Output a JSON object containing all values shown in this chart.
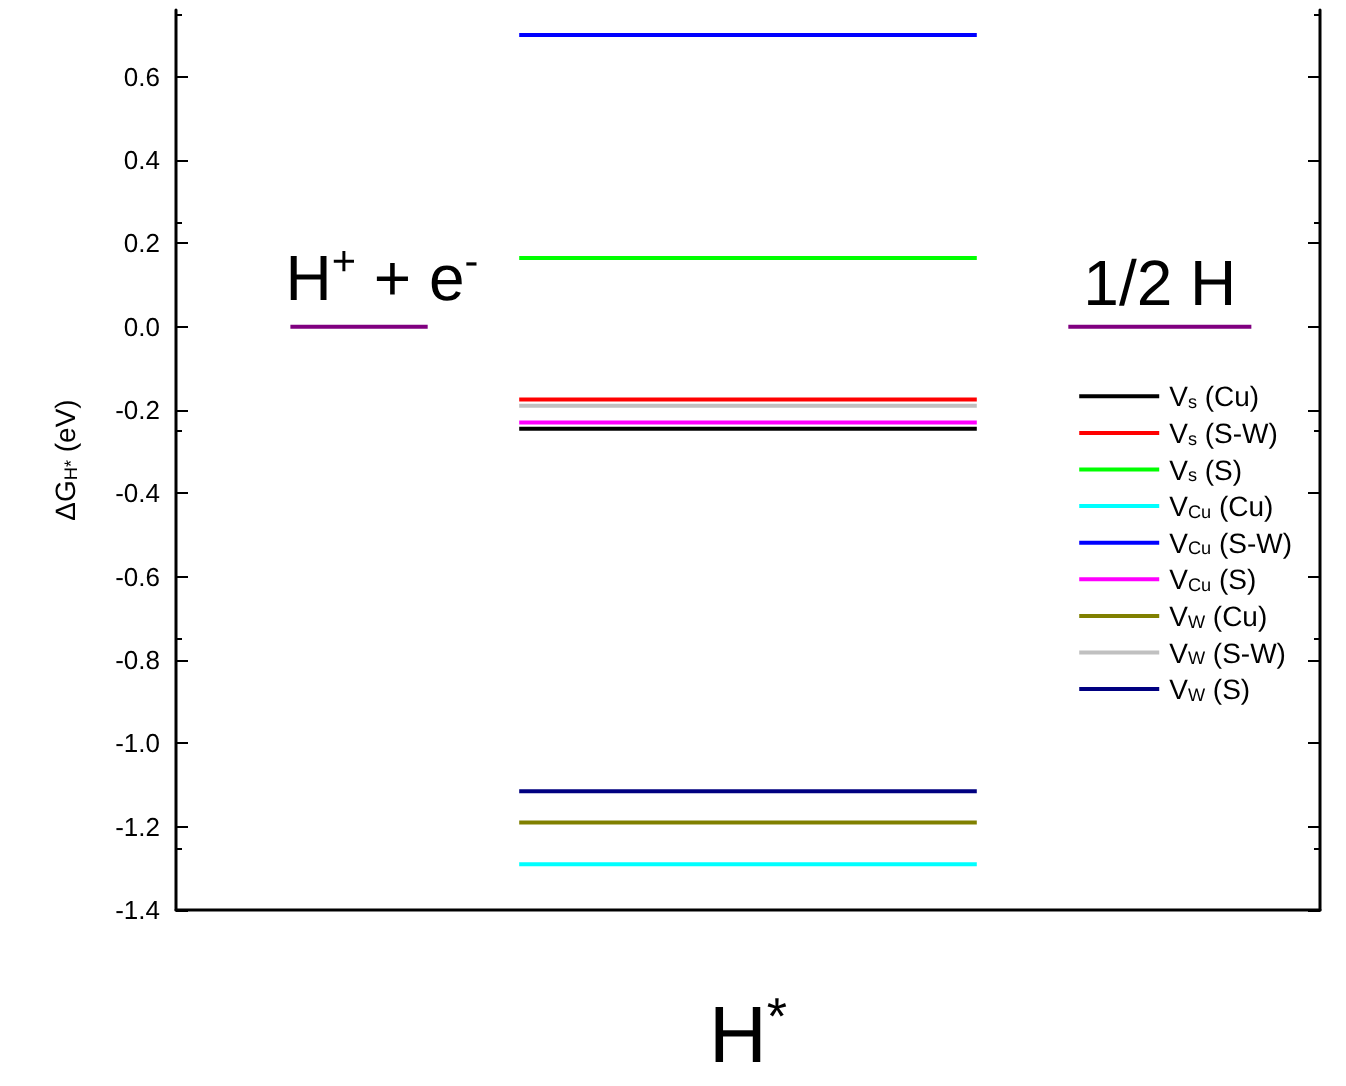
{
  "chart_data": {
    "type": "line",
    "xlabel": "H$^{*}$",
    "ylabel": "ΔG$_{H*}$ (eV)",
    "tick_labels": "y",
    "categories": [
      null,
      null,
      null,
      null,
      null,
      null,
      null,
      null,
      null,
      null,
      null,
      null,
      null,
      null,
      null,
      null,
      null,
      null,
      null,
      null,
      null,
      null,
      null,
      null,
      null
    ],
    "ylim": [
      -1.4,
      0.76
    ],
    "yticks": [
      -1.4,
      -1.2,
      {
        "value": -1.0,
        "label": "-1.0"
      },
      -0.8,
      -0.6,
      -0.4,
      -0.2,
      {
        "value": 0,
        "label": "0.0"
      },
      0.2,
      0.4,
      0.6
    ],
    "grid": false,
    "legend": "right",
    "marker": "none",
    "line_style": "solid",
    "annotations": [
      "H$^{+}$ + e$^{-}$",
      "1/2 H"
    ],
    "series": [
      {
        "color": "#800080",
        "values": [
          null,
          null,
          0,
          0,
          0,
          0,
          null,
          null,
          null,
          null,
          null,
          null,
          null,
          null,
          null,
          null,
          null,
          null,
          null,
          0,
          0,
          0,
          0,
          0,
          null
        ]
      },
      {
        "name": "V$_{s}$ (Cu)",
        "color": "#000000",
        "values": [
          null,
          null,
          null,
          null,
          null,
          null,
          null,
          -0.245,
          -0.245,
          -0.245,
          -0.245,
          -0.245,
          -0.245,
          -0.245,
          -0.245,
          -0.245,
          -0.245,
          -0.245,
          null,
          null,
          null,
          null,
          null,
          null,
          null
        ]
      },
      {
        "name": "V$_{s}$ (S-W)",
        "color": "#ff0000",
        "values": [
          null,
          null,
          null,
          null,
          null,
          null,
          null,
          -0.175,
          -0.175,
          -0.175,
          -0.175,
          -0.175,
          -0.175,
          -0.175,
          -0.175,
          -0.175,
          -0.175,
          -0.175,
          null,
          null,
          null,
          null,
          null,
          null,
          null
        ]
      },
      {
        "name": "V$_{s}$ (S)",
        "color": "#00ff00",
        "values": [
          null,
          null,
          null,
          null,
          null,
          null,
          null,
          0.165,
          0.165,
          0.165,
          0.165,
          0.165,
          0.165,
          0.165,
          0.165,
          0.165,
          0.165,
          0.165,
          null,
          null,
          null,
          null,
          null,
          null,
          null
        ]
      },
      {
        "name": "V$_{Cu}$ (Cu)",
        "color": "#00ffff",
        "values": [
          null,
          null,
          null,
          null,
          null,
          null,
          null,
          -1.29,
          -1.29,
          -1.29,
          -1.29,
          -1.29,
          -1.29,
          -1.29,
          -1.29,
          -1.29,
          -1.29,
          -1.29,
          null,
          null,
          null,
          null,
          null,
          null,
          null
        ]
      },
      {
        "name": "V$_{Cu}$ (S-W)",
        "color": "#0000ff",
        "values": [
          null,
          null,
          null,
          null,
          null,
          null,
          null,
          0.7,
          0.7,
          0.7,
          0.7,
          0.7,
          0.7,
          0.7,
          0.7,
          0.7,
          0.7,
          0.7,
          null,
          null,
          null,
          null,
          null,
          null,
          null
        ]
      },
      {
        "name": "V$_{Cu}$ (S)",
        "color": "#ff00ff",
        "values": [
          null,
          null,
          null,
          null,
          null,
          null,
          null,
          -0.23,
          -0.23,
          -0.23,
          -0.23,
          -0.23,
          -0.23,
          -0.23,
          -0.23,
          -0.23,
          -0.23,
          -0.23,
          null,
          null,
          null,
          null,
          null,
          null,
          null
        ]
      },
      {
        "name": "V$_{W}$ (Cu)",
        "color": "#808000",
        "values": [
          null,
          null,
          null,
          null,
          null,
          null,
          null,
          -1.19,
          -1.19,
          -1.19,
          -1.19,
          -1.19,
          -1.19,
          -1.19,
          -1.19,
          -1.19,
          -1.19,
          -1.19,
          null,
          null,
          null,
          null,
          null,
          null,
          null
        ]
      },
      {
        "name": "V$_{W}$ (S-W)",
        "color": "#c0c0c0",
        "values": [
          null,
          null,
          null,
          null,
          null,
          null,
          null,
          -0.19,
          -0.19,
          -0.19,
          -0.19,
          -0.19,
          -0.19,
          -0.19,
          -0.19,
          -0.19,
          -0.19,
          -0.19,
          null,
          null,
          null,
          null,
          null,
          null,
          null
        ]
      },
      {
        "name": "V$_{W}$ (S)",
        "color": "#000080",
        "values": [
          null,
          null,
          null,
          null,
          null,
          null,
          null,
          -1.115,
          -1.115,
          -1.115,
          -1.115,
          -1.115,
          -1.115,
          -1.115,
          -1.115,
          -1.115,
          -1.115,
          -1.115,
          null,
          null,
          null,
          null,
          null,
          null,
          null
        ]
      }
    ]
  }
}
